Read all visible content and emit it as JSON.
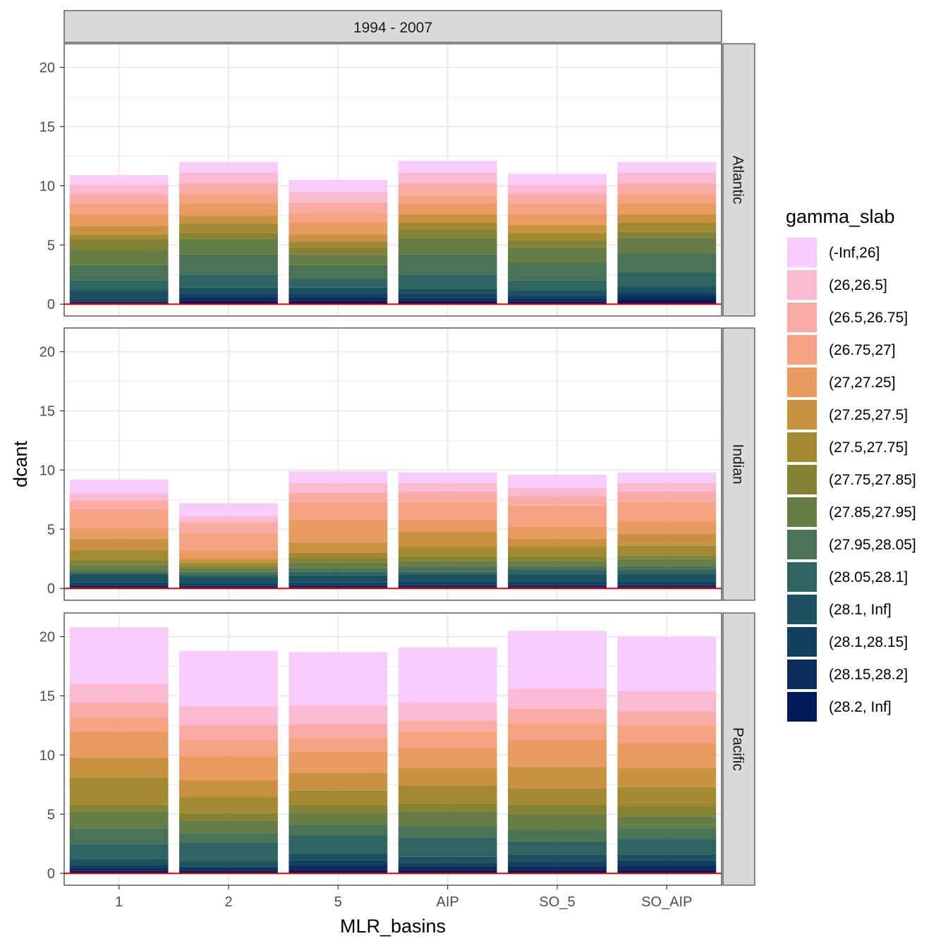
{
  "chart_data": {
    "type": "bar",
    "stacked": true,
    "facet_column_label": "1994 - 2007",
    "panels": [
      "Atlantic",
      "Indian",
      "Pacific"
    ],
    "categories": [
      "1",
      "2",
      "5",
      "AIP",
      "SO_5",
      "SO_AIP"
    ],
    "xlabel": "MLR_basins",
    "ylabel": "dcant",
    "ylim": [
      -1,
      22
    ],
    "yticks": [
      0,
      5,
      10,
      15,
      20
    ],
    "grid": true,
    "reference_line": {
      "y": 0,
      "color": "#e8000b"
    },
    "legend": {
      "title": "gamma_slab",
      "position": "right",
      "entries": [
        "(-Inf,26]",
        "(26,26.5]",
        "(26.5,26.75]",
        "(26.75,27]",
        "(27,27.25]",
        "(27.25,27.5]",
        "(27.5,27.75]",
        "(27.75,27.85]",
        "(27.85,27.95]",
        "(27.95,28.05]",
        "(28.05,28.1]",
        "(28.1, Inf]",
        "(28.1,28.15]",
        "(28.15,28.2]",
        "(28.2, Inf]"
      ],
      "colors": [
        "#f8ccf9",
        "#fabbd2",
        "#f9aca6",
        "#f6a384",
        "#e99b62",
        "#c99241",
        "#a38a32",
        "#848334",
        "#667d45",
        "#4a7254",
        "#2f6460",
        "#1c5260",
        "#123f5f",
        "#0c2c5e",
        "#001959"
      ]
    },
    "series_cumulative_tops": [
      {
        "panel": "Atlantic",
        "stacks": {
          "1": [
            10.9,
            10.1,
            9.3,
            8.5,
            7.6,
            6.6,
            5.9,
            5.5,
            4.6,
            3.3,
            2.0,
            1.2,
            0.4,
            0.2,
            0.1
          ],
          "2": [
            12.0,
            11.1,
            10.2,
            9.3,
            8.5,
            7.5,
            6.8,
            6.0,
            5.5,
            4.2,
            2.5,
            1.4,
            0.9,
            0.6,
            0.3
          ],
          "5": [
            10.5,
            9.5,
            8.6,
            7.7,
            6.9,
            5.9,
            5.3,
            4.8,
            4.2,
            3.3,
            2.2,
            1.4,
            0.9,
            0.6,
            0.3
          ],
          "AIP": [
            12.1,
            11.1,
            10.2,
            9.2,
            8.5,
            7.6,
            6.9,
            6.3,
            5.6,
            4.2,
            2.5,
            1.3,
            0.9,
            0.5,
            0.3
          ],
          "SO_5": [
            11.0,
            10.1,
            9.3,
            8.5,
            7.6,
            6.7,
            6.0,
            5.4,
            4.8,
            3.5,
            2.0,
            1.2,
            0.7,
            0.4,
            0.2
          ],
          "SO_AIP": [
            12.0,
            11.1,
            10.2,
            9.3,
            8.5,
            7.6,
            6.9,
            6.1,
            5.6,
            4.3,
            2.7,
            1.5,
            1.0,
            0.7,
            0.4
          ]
        }
      },
      {
        "panel": "Indian",
        "stacks": {
          "1": [
            9.2,
            8.0,
            7.4,
            6.7,
            5.1,
            4.2,
            3.2,
            2.4,
            2.0,
            1.5,
            1.3,
            1.2,
            0.5,
            0.3,
            0.1
          ],
          "2": [
            7.2,
            6.1,
            5.6,
            4.7,
            3.2,
            2.5,
            2.2,
            1.9,
            1.7,
            1.4,
            1.2,
            1.0,
            0.4,
            0.2,
            0.1
          ],
          "5": [
            9.9,
            8.9,
            8.1,
            7.3,
            5.8,
            3.9,
            3.0,
            2.6,
            2.2,
            1.7,
            1.4,
            1.1,
            0.5,
            0.3,
            0.1
          ],
          "AIP": [
            9.8,
            8.9,
            8.2,
            7.3,
            5.8,
            4.8,
            3.5,
            2.7,
            2.3,
            1.8,
            1.4,
            1.2,
            0.6,
            0.3,
            0.1
          ],
          "SO_5": [
            9.6,
            8.5,
            7.8,
            7.0,
            5.2,
            4.2,
            3.5,
            2.7,
            2.3,
            1.8,
            1.6,
            1.2,
            0.6,
            0.3,
            0.1
          ],
          "SO_AIP": [
            9.8,
            8.9,
            8.2,
            7.3,
            5.7,
            4.6,
            3.6,
            2.8,
            2.5,
            1.9,
            1.6,
            1.2,
            0.6,
            0.3,
            0.1
          ]
        }
      },
      {
        "panel": "Pacific",
        "stacks": {
          "1": [
            20.8,
            16.0,
            14.4,
            13.2,
            12.0,
            9.8,
            8.1,
            5.8,
            5.2,
            3.8,
            2.5,
            1.2,
            0.7,
            0.4,
            0.2
          ],
          "2": [
            18.8,
            14.1,
            12.5,
            11.3,
            9.9,
            7.9,
            6.5,
            5.1,
            4.5,
            3.4,
            2.6,
            1.0,
            0.6,
            0.4,
            0.2
          ],
          "5": [
            18.7,
            14.2,
            12.6,
            11.5,
            10.3,
            8.5,
            7.0,
            5.8,
            5.1,
            4.1,
            3.2,
            1.7,
            1.1,
            0.7,
            0.3
          ],
          "AIP": [
            19.1,
            14.4,
            12.9,
            12.0,
            10.6,
            8.9,
            7.4,
            5.9,
            5.2,
            4.0,
            3.0,
            1.4,
            0.9,
            0.6,
            0.3
          ],
          "SO_5": [
            20.5,
            15.6,
            13.9,
            12.7,
            11.3,
            9.0,
            7.2,
            5.8,
            5.0,
            3.7,
            2.7,
            1.6,
            1.0,
            0.6,
            0.3
          ],
          "SO_AIP": [
            20.0,
            15.4,
            13.7,
            12.5,
            11.0,
            8.9,
            7.3,
            5.7,
            4.8,
            3.8,
            2.9,
            1.6,
            1.1,
            0.7,
            0.3
          ]
        }
      }
    ]
  }
}
